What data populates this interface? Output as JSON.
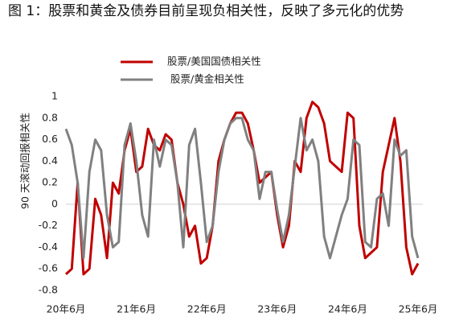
{
  "chart_data": {
    "type": "line",
    "title": "图 1：股票和黄金及债券目前呈现负相关性，反映了多元化的优势",
    "y_label": "90 天滚动回报相关性",
    "categories": [
      "20年6月",
      null,
      null,
      null,
      null,
      null,
      null,
      null,
      null,
      null,
      null,
      null,
      "21年6月",
      null,
      null,
      null,
      null,
      null,
      null,
      null,
      null,
      null,
      null,
      null,
      "22年6月",
      null,
      null,
      null,
      null,
      null,
      null,
      null,
      null,
      null,
      null,
      null,
      "23年6月",
      null,
      null,
      null,
      null,
      null,
      null,
      null,
      null,
      null,
      null,
      null,
      "24年6月",
      null,
      null,
      null,
      null,
      null,
      null,
      null,
      null,
      null,
      null,
      null,
      "25年6月"
    ],
    "series": [
      {
        "name": "股票/美国国债相关性",
        "color": "#c00000",
        "values": [
          -0.65,
          -0.6,
          0.2,
          -0.65,
          -0.6,
          0.05,
          -0.1,
          -0.5,
          0.2,
          0.1,
          0.5,
          0.7,
          0.3,
          0.35,
          0.7,
          0.55,
          0.5,
          0.65,
          0.6,
          0.2,
          0.0,
          -0.3,
          -0.2,
          -0.55,
          -0.5,
          -0.2,
          0.4,
          0.6,
          0.75,
          0.85,
          0.85,
          0.75,
          0.5,
          0.2,
          0.25,
          0.3,
          -0.1,
          -0.4,
          -0.2,
          0.4,
          0.3,
          0.8,
          0.95,
          0.9,
          0.75,
          0.4,
          0.35,
          0.3,
          0.85,
          0.8,
          -0.2,
          -0.5,
          -0.45,
          -0.4,
          0.3,
          0.55,
          0.8,
          0.4,
          -0.4,
          -0.65,
          -0.55
        ]
      },
      {
        "name": "股票/黄金相关性",
        "color": "#808080",
        "values": [
          0.7,
          0.55,
          0.2,
          -0.5,
          0.3,
          0.6,
          0.5,
          -0.1,
          -0.4,
          -0.35,
          0.55,
          0.75,
          0.4,
          -0.1,
          -0.3,
          0.6,
          0.35,
          0.6,
          0.55,
          0.2,
          -0.4,
          0.55,
          0.7,
          0.2,
          -0.35,
          -0.2,
          0.3,
          0.6,
          0.75,
          0.8,
          0.8,
          0.6,
          0.5,
          0.05,
          0.3,
          0.3,
          -0.05,
          -0.35,
          -0.1,
          0.35,
          0.8,
          0.5,
          0.6,
          0.4,
          -0.3,
          -0.5,
          -0.3,
          -0.1,
          0.05,
          0.6,
          0.55,
          -0.35,
          -0.4,
          0.05,
          0.1,
          -0.2,
          0.6,
          0.45,
          0.5,
          -0.3,
          -0.5
        ]
      }
    ],
    "ylim": [
      -0.8,
      1
    ],
    "yticks": [
      -0.8,
      -0.6,
      -0.4,
      -0.2,
      0,
      0.2,
      0.4,
      0.6,
      0.8,
      1
    ],
    "legend": "top"
  }
}
